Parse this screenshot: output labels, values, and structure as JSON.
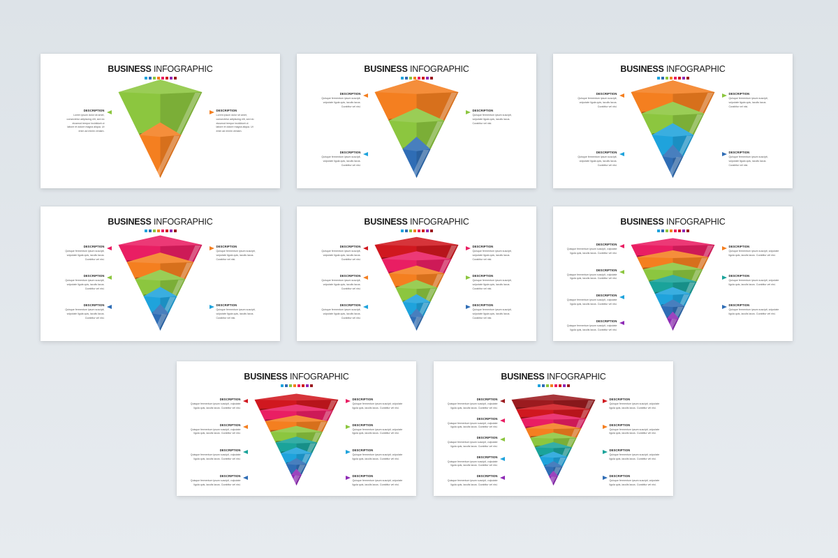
{
  "slides": [
    {
      "title_bold": "BUSINESS",
      "title_light": "INFOGRAPHIC",
      "layers": [
        {
          "color": "#8cc63f"
        },
        {
          "color": "#f47f20"
        }
      ],
      "left_items": [
        {
          "label": "DESCRIPTION",
          "lines": [
            "Lorem ipsum dolor sit amet,",
            "consectetur adipiscing elit, sed do",
            "eiusmod tempor incididunt ut",
            "labore et dolore magna aliqua. Ut",
            "enim ad minim veniam."
          ],
          "color": "#8cc63f"
        }
      ],
      "right_items": [
        {
          "label": "DESCRIPTION",
          "lines": [
            "Lorem ipsum dolor sit amet,",
            "consectetur adipiscing elit, sed do",
            "eiusmod tempor incididunt ut",
            "labore et dolore magna aliqua. Ut",
            "enim ad minim veniam."
          ],
          "color": "#f47f20"
        }
      ]
    },
    {
      "title_bold": "BUSINESS",
      "title_light": "INFOGRAPHIC",
      "layers": [
        {
          "color": "#f47f20"
        },
        {
          "color": "#8cc63f"
        },
        {
          "color": "#2f6db5"
        }
      ],
      "left_items": [
        {
          "label": "DESCRIPTION",
          "lines": [
            "Quisque fermentum ipsum suscipit,",
            "vulputate ligula quis, iaculis lacus.",
            "Curabitur vel nisi."
          ],
          "color": "#f47f20"
        },
        {
          "label": "DESCRIPTION",
          "lines": [
            "Quisque fermentum ipsum suscipit,",
            "vulputate ligula quis, iaculis lacus.",
            "Curabitur vel nisi."
          ],
          "color": "#1fa3dc"
        }
      ],
      "right_items": [
        {
          "label": "DESCRIPTION",
          "lines": [
            "Quisque fermentum ipsum suscipit,",
            "vulputate ligula quis, iaculis lacus.",
            "Curabitur vel nisi."
          ],
          "color": "#8cc63f"
        }
      ]
    },
    {
      "title_bold": "BUSINESS",
      "title_light": "INFOGRAPHIC",
      "layers": [
        {
          "color": "#f47f20"
        },
        {
          "color": "#8cc63f"
        },
        {
          "color": "#1fa3dc"
        },
        {
          "color": "#2f6db5"
        }
      ],
      "left_items": [
        {
          "label": "DESCRIPTION",
          "lines": [
            "Quisque fermentum ipsum suscipit,",
            "vulputate ligula quis, iaculis lacus.",
            "Curabitur vel nisi."
          ],
          "color": "#f47f20"
        },
        {
          "label": "DESCRIPTION",
          "lines": [
            "Quisque fermentum ipsum suscipit,",
            "vulputate ligula quis, iaculis lacus.",
            "Curabitur vel nisi."
          ],
          "color": "#1fa3dc"
        }
      ],
      "right_items": [
        {
          "label": "DESCRIPTION",
          "lines": [
            "Quisque fermentum ipsum suscipit,",
            "vulputate ligula quis, iaculis lacus.",
            "Curabitur vel nisi."
          ],
          "color": "#8cc63f"
        },
        {
          "label": "DESCRIPTION",
          "lines": [
            "Quisque fermentum ipsum suscipit,",
            "vulputate ligula quis, iaculis lacus.",
            "Curabitur vel nisi."
          ],
          "color": "#2f6db5"
        }
      ]
    },
    {
      "title_bold": "BUSINESS",
      "title_light": "INFOGRAPHIC",
      "layers": [
        {
          "color": "#e91e63"
        },
        {
          "color": "#f47f20"
        },
        {
          "color": "#8cc63f"
        },
        {
          "color": "#1fa3dc"
        },
        {
          "color": "#2f6db5"
        }
      ],
      "left_items": [
        {
          "label": "DESCRIPTION",
          "lines": [
            "Quisque fermentum ipsum suscipit,",
            "vulputate ligula quis, iaculis lacus.",
            "Curabitur vel nisi."
          ],
          "color": "#e91e63"
        },
        {
          "label": "DESCRIPTION",
          "lines": [
            "Quisque fermentum ipsum suscipit,",
            "vulputate ligula quis, iaculis lacus.",
            "Curabitur vel nisi."
          ],
          "color": "#8cc63f"
        },
        {
          "label": "DESCRIPTION",
          "lines": [
            "Quisque fermentum ipsum suscipit,",
            "vulputate ligula quis, iaculis lacus.",
            "Curabitur vel nisi."
          ],
          "color": "#2f6db5"
        }
      ],
      "right_items": [
        {
          "label": "DESCRIPTION",
          "lines": [
            "Quisque fermentum ipsum suscipit,",
            "vulputate ligula quis, iaculis lacus.",
            "Curabitur vel nisi."
          ],
          "color": "#f47f20"
        },
        {
          "label": "DESCRIPTION",
          "lines": [
            "Quisque fermentum ipsum suscipit,",
            "vulputate ligula quis, iaculis lacus.",
            "Curabitur vel nisi."
          ],
          "color": "#1fa3dc"
        }
      ]
    },
    {
      "title_bold": "BUSINESS",
      "title_light": "INFOGRAPHIC",
      "layers": [
        {
          "color": "#d0181f"
        },
        {
          "color": "#e91e63"
        },
        {
          "color": "#f47f20"
        },
        {
          "color": "#8cc63f"
        },
        {
          "color": "#1fa3dc"
        },
        {
          "color": "#2f6db5"
        }
      ],
      "left_items": [
        {
          "label": "DESCRIPTION",
          "lines": [
            "Quisque fermentum ipsum suscipit,",
            "vulputate ligula quis, iaculis lacus.",
            "Curabitur vel nisi."
          ],
          "color": "#d0181f"
        },
        {
          "label": "DESCRIPTION",
          "lines": [
            "Quisque fermentum ipsum suscipit,",
            "vulputate ligula quis, iaculis lacus.",
            "Curabitur vel nisi."
          ],
          "color": "#f47f20"
        },
        {
          "label": "DESCRIPTION",
          "lines": [
            "Quisque fermentum ipsum suscipit,",
            "vulputate ligula quis, iaculis lacus.",
            "Curabitur vel nisi."
          ],
          "color": "#1fa3dc"
        }
      ],
      "right_items": [
        {
          "label": "DESCRIPTION",
          "lines": [
            "Quisque fermentum ipsum suscipit,",
            "vulputate ligula quis, iaculis lacus.",
            "Curabitur vel nisi."
          ],
          "color": "#e91e63"
        },
        {
          "label": "DESCRIPTION",
          "lines": [
            "Quisque fermentum ipsum suscipit,",
            "vulputate ligula quis, iaculis lacus.",
            "Curabitur vel nisi."
          ],
          "color": "#8cc63f"
        },
        {
          "label": "DESCRIPTION",
          "lines": [
            "Quisque fermentum ipsum suscipit,",
            "vulputate ligula quis, iaculis lacus.",
            "Curabitur vel nisi."
          ],
          "color": "#2f6db5"
        }
      ]
    },
    {
      "title_bold": "BUSINESS",
      "title_light": "INFOGRAPHIC",
      "layers": [
        {
          "color": "#e91e63"
        },
        {
          "color": "#f47f20"
        },
        {
          "color": "#8cc63f"
        },
        {
          "color": "#1aa39a"
        },
        {
          "color": "#1fa3dc"
        },
        {
          "color": "#2f6db5"
        },
        {
          "color": "#8e2ab5"
        }
      ],
      "left_items": [
        {
          "label": "DESCRIPTION",
          "lines": [
            "Quisque fermentum ipsum suscipit, vulputate",
            "ligula quis, iaculis lacus. Curabitur vel nisi."
          ],
          "color": "#e91e63"
        },
        {
          "label": "DESCRIPTION",
          "lines": [
            "Quisque fermentum ipsum suscipit, vulputate",
            "ligula quis, iaculis lacus. Curabitur vel nisi."
          ],
          "color": "#8cc63f"
        },
        {
          "label": "DESCRIPTION",
          "lines": [
            "Quisque fermentum ipsum suscipit, vulputate",
            "ligula quis, iaculis lacus. Curabitur vel nisi."
          ],
          "color": "#1fa3dc"
        },
        {
          "label": "DESCRIPTION",
          "lines": [
            "Quisque fermentum ipsum suscipit, vulputate",
            "ligula quis, iaculis lacus. Curabitur vel nisi."
          ],
          "color": "#8e2ab5"
        }
      ],
      "right_items": [
        {
          "label": "DESCRIPTION",
          "lines": [
            "Quisque fermentum ipsum suscipit, vulputate",
            "ligula quis, iaculis lacus. Curabitur vel nisi."
          ],
          "color": "#f47f20"
        },
        {
          "label": "DESCRIPTION",
          "lines": [
            "Quisque fermentum ipsum suscipit, vulputate",
            "ligula quis, iaculis lacus. Curabitur vel nisi."
          ],
          "color": "#1aa39a"
        },
        {
          "label": "DESCRIPTION",
          "lines": [
            "Quisque fermentum ipsum suscipit, vulputate",
            "ligula quis, iaculis lacus. Curabitur vel nisi."
          ],
          "color": "#2f6db5"
        }
      ]
    },
    {
      "title_bold": "BUSINESS",
      "title_light": "INFOGRAPHIC",
      "layers": [
        {
          "color": "#d0181f"
        },
        {
          "color": "#e91e63"
        },
        {
          "color": "#f47f20"
        },
        {
          "color": "#8cc63f"
        },
        {
          "color": "#1aa39a"
        },
        {
          "color": "#1fa3dc"
        },
        {
          "color": "#2f6db5"
        },
        {
          "color": "#8e2ab5"
        }
      ],
      "left_items": [
        {
          "label": "DESCRIPTION",
          "lines": [
            "Quisque fermentum ipsum suscipit, vulputate",
            "ligula quis, iaculis lacus. Curabitur vel nisi."
          ],
          "color": "#d0181f"
        },
        {
          "label": "DESCRIPTION",
          "lines": [
            "Quisque fermentum ipsum suscipit, vulputate",
            "ligula quis, iaculis lacus. Curabitur vel nisi."
          ],
          "color": "#f47f20"
        },
        {
          "label": "DESCRIPTION",
          "lines": [
            "Quisque fermentum ipsum suscipit, vulputate",
            "ligula quis, iaculis lacus. Curabitur vel nisi."
          ],
          "color": "#1aa39a"
        },
        {
          "label": "DESCRIPTION",
          "lines": [
            "Quisque fermentum ipsum suscipit, vulputate",
            "ligula quis, iaculis lacus. Curabitur vel nisi."
          ],
          "color": "#2f6db5"
        }
      ],
      "right_items": [
        {
          "label": "DESCRIPTION",
          "lines": [
            "Quisque fermentum ipsum suscipit, vulputate",
            "ligula quis, iaculis lacus. Curabitur vel nisi."
          ],
          "color": "#e91e63"
        },
        {
          "label": "DESCRIPTION",
          "lines": [
            "Quisque fermentum ipsum suscipit, vulputate",
            "ligula quis, iaculis lacus. Curabitur vel nisi."
          ],
          "color": "#8cc63f"
        },
        {
          "label": "DESCRIPTION",
          "lines": [
            "Quisque fermentum ipsum suscipit, vulputate",
            "ligula quis, iaculis lacus. Curabitur vel nisi."
          ],
          "color": "#1fa3dc"
        },
        {
          "label": "DESCRIPTION",
          "lines": [
            "Quisque fermentum ipsum suscipit, vulputate",
            "ligula quis, iaculis lacus. Curabitur vel nisi."
          ],
          "color": "#8e2ab5"
        }
      ]
    },
    {
      "title_bold": "BUSINESS",
      "title_light": "INFOGRAPHIC",
      "layers": [
        {
          "color": "#9b1b1f"
        },
        {
          "color": "#d0181f"
        },
        {
          "color": "#e91e63"
        },
        {
          "color": "#f47f20"
        },
        {
          "color": "#8cc63f"
        },
        {
          "color": "#1aa39a"
        },
        {
          "color": "#1fa3dc"
        },
        {
          "color": "#2f6db5"
        },
        {
          "color": "#8e2ab5"
        }
      ],
      "left_items": [
        {
          "label": "DESCRIPTION",
          "lines": [
            "Quisque fermentum ipsum suscipit, vulputate",
            "ligula quis, iaculis lacus. Curabitur vel nisi."
          ],
          "color": "#9b1b1f"
        },
        {
          "label": "DESCRIPTION",
          "lines": [
            "Quisque fermentum ipsum suscipit, vulputate",
            "ligula quis, iaculis lacus. Curabitur vel nisi."
          ],
          "color": "#e91e63"
        },
        {
          "label": "DESCRIPTION",
          "lines": [
            "Quisque fermentum ipsum suscipit, vulputate",
            "ligula quis, iaculis lacus. Curabitur vel nisi."
          ],
          "color": "#8cc63f"
        },
        {
          "label": "DESCRIPTION",
          "lines": [
            "Quisque fermentum ipsum suscipit, vulputate",
            "ligula quis, iaculis lacus. Curabitur vel nisi."
          ],
          "color": "#1fa3dc"
        },
        {
          "label": "DESCRIPTION",
          "lines": [
            "Quisque fermentum ipsum suscipit, vulputate",
            "ligula quis, iaculis lacus. Curabitur vel nisi."
          ],
          "color": "#8e2ab5"
        }
      ],
      "right_items": [
        {
          "label": "DESCRIPTION",
          "lines": [
            "Quisque fermentum ipsum suscipit, vulputate",
            "ligula quis, iaculis lacus. Curabitur vel nisi."
          ],
          "color": "#d0181f"
        },
        {
          "label": "DESCRIPTION",
          "lines": [
            "Quisque fermentum ipsum suscipit, vulputate",
            "ligula quis, iaculis lacus. Curabitur vel nisi."
          ],
          "color": "#f47f20"
        },
        {
          "label": "DESCRIPTION",
          "lines": [
            "Quisque fermentum ipsum suscipit, vulputate",
            "ligula quis, iaculis lacus. Curabitur vel nisi."
          ],
          "color": "#1aa39a"
        },
        {
          "label": "DESCRIPTION",
          "lines": [
            "Quisque fermentum ipsum suscipit, vulputate",
            "ligula quis, iaculis lacus. Curabitur vel nisi."
          ],
          "color": "#2f6db5"
        }
      ]
    }
  ],
  "header_dot_colors": [
    "#1fa3dc",
    "#2f6db5",
    "#8cc63f",
    "#f47f20",
    "#e91e63",
    "#d0181f",
    "#8e2ab5",
    "#9b1b1f"
  ]
}
